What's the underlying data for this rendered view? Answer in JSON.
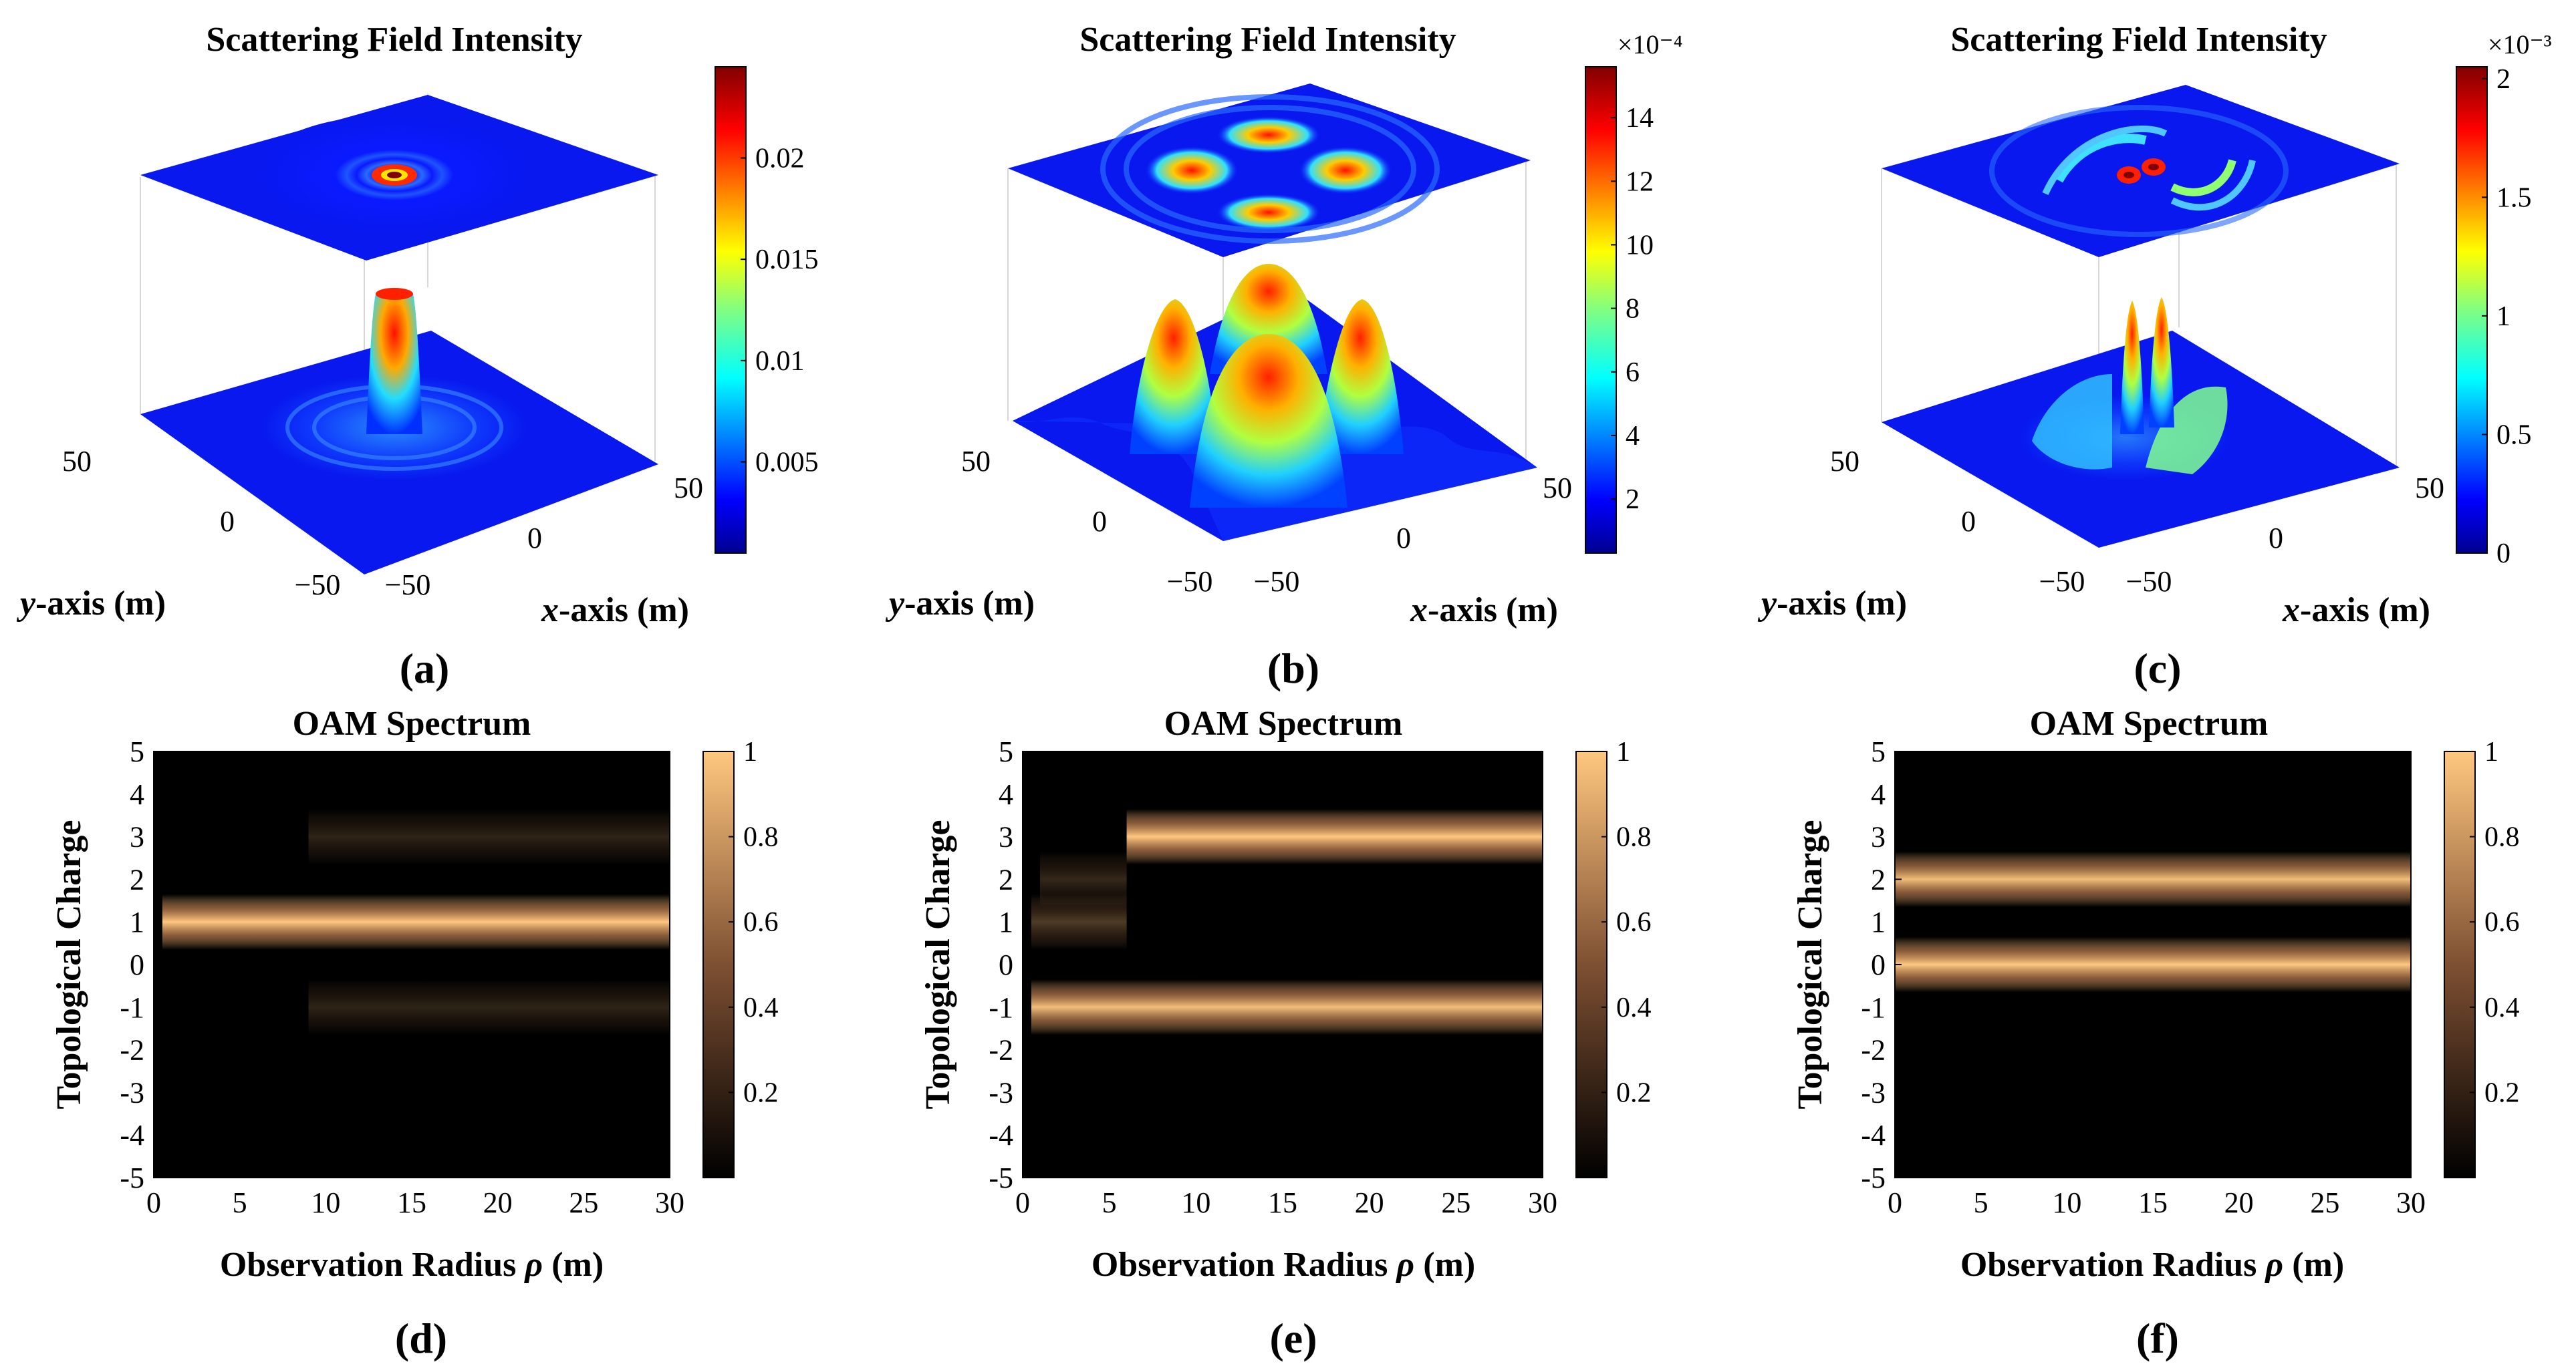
{
  "chart_data": [
    {
      "id": "a",
      "type": "surface3d",
      "panel_label": "(a)",
      "title": "Scattering Field Intensity",
      "xlabel_italic": "x",
      "xlabel_rest": "-axis (m)",
      "ylabel_italic": "y",
      "ylabel_rest": "-axis (m)",
      "x_ticks": [
        "−50",
        "0",
        "50"
      ],
      "y_ticks": [
        "50",
        "0",
        "−50"
      ],
      "colormap": "jet",
      "colorbar_ticks": [
        {
          "value": 0.005,
          "label": "0.005"
        },
        {
          "value": 0.01,
          "label": "0.01"
        },
        {
          "value": 0.015,
          "label": "0.015"
        },
        {
          "value": 0.02,
          "label": "0.02"
        }
      ],
      "colorbar_range": [
        0.0005,
        0.0245
      ],
      "colorbar_exponent": "",
      "pattern": "central-peak"
    },
    {
      "id": "b",
      "type": "surface3d",
      "panel_label": "(b)",
      "title": "Scattering Field Intensity",
      "xlabel_italic": "x",
      "xlabel_rest": "-axis (m)",
      "ylabel_italic": "y",
      "ylabel_rest": "-axis (m)",
      "x_ticks": [
        "−50",
        "0",
        "50"
      ],
      "y_ticks": [
        "50",
        "0",
        "−50"
      ],
      "colormap": "jet",
      "colorbar_ticks": [
        {
          "value": 2,
          "label": "2"
        },
        {
          "value": 4,
          "label": "4"
        },
        {
          "value": 6,
          "label": "6"
        },
        {
          "value": 8,
          "label": "8"
        },
        {
          "value": 10,
          "label": "10"
        },
        {
          "value": 12,
          "label": "12"
        },
        {
          "value": 14,
          "label": "14"
        }
      ],
      "colorbar_range": [
        0.3,
        15.6
      ],
      "colorbar_exponent": "×10⁻⁴",
      "pattern": "four-lobes"
    },
    {
      "id": "c",
      "type": "surface3d",
      "panel_label": "(c)",
      "title": "Scattering Field Intensity",
      "xlabel_italic": "x",
      "xlabel_rest": "-axis (m)",
      "ylabel_italic": "y",
      "ylabel_rest": "-axis (m)",
      "x_ticks": [
        "−50",
        "0",
        "50"
      ],
      "y_ticks": [
        "50",
        "0",
        "−50"
      ],
      "colormap": "jet",
      "colorbar_ticks": [
        {
          "value": 0,
          "label": "0"
        },
        {
          "value": 0.5,
          "label": "0.5"
        },
        {
          "value": 1,
          "label": "1"
        },
        {
          "value": 1.5,
          "label": "1.5"
        },
        {
          "value": 2,
          "label": "2"
        }
      ],
      "colorbar_range": [
        0,
        2.05
      ],
      "colorbar_exponent": "×10⁻³",
      "pattern": "two-peaks-arcs"
    },
    {
      "id": "d",
      "type": "heatmap",
      "panel_label": "(d)",
      "title": "OAM Spectrum",
      "xlabel_prefix": "Observation Radius ",
      "xlabel_italic": "ρ",
      "xlabel_suffix": " (m)",
      "ylabel": "Topological Charge",
      "x_range": [
        0,
        30
      ],
      "y_range": [
        -5,
        5
      ],
      "x_ticks": [
        0,
        5,
        10,
        15,
        20,
        25,
        30
      ],
      "y_ticks": [
        5,
        4,
        3,
        2,
        1,
        0,
        -1,
        -2,
        -3,
        -4,
        -5
      ],
      "y_tick_labels": [
        "5",
        "4",
        "3",
        "2",
        "1",
        "0",
        "-1",
        "-2",
        "-3",
        "-4",
        "-5"
      ],
      "colormap": "copper",
      "colorbar_ticks": [
        {
          "value": 0.2,
          "label": "0.2"
        },
        {
          "value": 0.4,
          "label": "0.4"
        },
        {
          "value": 0.6,
          "label": "0.6"
        },
        {
          "value": 0.8,
          "label": "0.8"
        },
        {
          "value": 1,
          "label": "1"
        }
      ],
      "colorbar_range": [
        0,
        1
      ],
      "bands": [
        {
          "charge": 1,
          "x_start": 0.5,
          "x_end": 30,
          "intensity": 1.0
        },
        {
          "charge": 3,
          "x_start": 9,
          "x_end": 30,
          "intensity": 0.18
        },
        {
          "charge": -1,
          "x_start": 9,
          "x_end": 30,
          "intensity": 0.18
        }
      ]
    },
    {
      "id": "e",
      "type": "heatmap",
      "panel_label": "(e)",
      "title": "OAM Spectrum",
      "xlabel_prefix": "Observation Radius ",
      "xlabel_italic": "ρ",
      "xlabel_suffix": " (m)",
      "ylabel": "Topological Charge",
      "x_range": [
        0,
        30
      ],
      "y_range": [
        -5,
        5
      ],
      "x_ticks": [
        0,
        5,
        10,
        15,
        20,
        25,
        30
      ],
      "y_ticks": [
        5,
        4,
        3,
        2,
        1,
        0,
        -1,
        -2,
        -3,
        -4,
        -5
      ],
      "y_tick_labels": [
        "5",
        "4",
        "3",
        "2",
        "1",
        "0",
        "-1",
        "-2",
        "-3",
        "-4",
        "-5"
      ],
      "colormap": "copper",
      "colorbar_ticks": [
        {
          "value": 0.2,
          "label": "0.2"
        },
        {
          "value": 0.4,
          "label": "0.4"
        },
        {
          "value": 0.6,
          "label": "0.6"
        },
        {
          "value": 0.8,
          "label": "0.8"
        },
        {
          "value": 1,
          "label": "1"
        }
      ],
      "colorbar_range": [
        0,
        1
      ],
      "bands": [
        {
          "charge": 3,
          "x_start": 6,
          "x_end": 30,
          "intensity": 1.0
        },
        {
          "charge": -1,
          "x_start": 0.5,
          "x_end": 30,
          "intensity": 0.95
        },
        {
          "charge": 1,
          "x_start": 0.5,
          "x_end": 6,
          "intensity": 0.3
        },
        {
          "charge": 2,
          "x_start": 1,
          "x_end": 6,
          "intensity": 0.2
        }
      ]
    },
    {
      "id": "f",
      "type": "heatmap",
      "panel_label": "(f)",
      "title": "OAM Spectrum",
      "xlabel_prefix": "Observation Radius ",
      "xlabel_italic": "ρ",
      "xlabel_suffix": " (m)",
      "ylabel": "Topological Charge",
      "x_range": [
        0,
        30
      ],
      "y_range": [
        -5,
        5
      ],
      "x_ticks": [
        0,
        5,
        10,
        15,
        20,
        25,
        30
      ],
      "y_ticks": [
        5,
        4,
        3,
        2,
        1,
        0,
        -1,
        -2,
        -3,
        -4,
        -5
      ],
      "y_tick_labels": [
        "5",
        "4",
        "3",
        "2",
        "1",
        "0",
        "-1",
        "-2",
        "-3",
        "-4",
        "-5"
      ],
      "colormap": "copper",
      "colorbar_ticks": [
        {
          "value": 0.2,
          "label": "0.2"
        },
        {
          "value": 0.4,
          "label": "0.4"
        },
        {
          "value": 0.6,
          "label": "0.6"
        },
        {
          "value": 0.8,
          "label": "0.8"
        },
        {
          "value": 1,
          "label": "1"
        }
      ],
      "colorbar_range": [
        0,
        1
      ],
      "bands": [
        {
          "charge": 2,
          "x_start": 0,
          "x_end": 30,
          "intensity": 0.95
        },
        {
          "charge": 0,
          "x_start": 0,
          "x_end": 30,
          "intensity": 1.0
        }
      ]
    }
  ]
}
